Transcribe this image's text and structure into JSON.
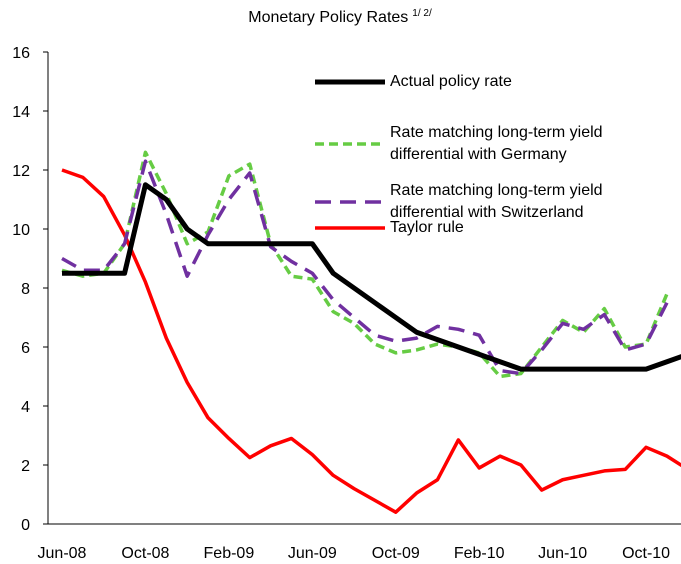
{
  "chart_data": {
    "type": "line",
    "title": "Monetary Policy Rates",
    "title_note": "1/ 2/",
    "categories": [
      "Jun-08",
      null,
      null,
      null,
      "Oct-08",
      null,
      null,
      null,
      "Feb-09",
      null,
      null,
      null,
      "Jun-09",
      null,
      null,
      null,
      "Oct-09",
      null,
      null,
      null,
      "Feb-10",
      null,
      null,
      null,
      "Jun-10",
      null,
      null,
      null,
      "Oct-10",
      null,
      null
    ],
    "series": [
      {
        "name": "Actual policy rate",
        "color": "#000000",
        "dash": "solid",
        "values": [
          8.5,
          8.5,
          8.5,
          8.5,
          11.5,
          11,
          10,
          9.5,
          9.5,
          9.5,
          9.5,
          9.5,
          9.5,
          8.5,
          8,
          7.5,
          7,
          6.5,
          6.25,
          6,
          5.75,
          5.5,
          5.25,
          5.25,
          5.25,
          5.25,
          5.25,
          5.25,
          5.25,
          5.5,
          5.75
        ]
      },
      {
        "name": "Rate matching long-term yield differential with Germany",
        "color": "#66cc44",
        "dash": "short",
        "values": [
          8.6,
          8.4,
          8.5,
          9.5,
          12.6,
          11.2,
          9.5,
          9.9,
          11.8,
          12.2,
          9.5,
          8.4,
          8.3,
          7.2,
          6.8,
          6.1,
          5.8,
          5.9,
          6.1,
          6.0,
          5.8,
          5.0,
          5.1,
          6.0,
          6.9,
          6.5,
          7.3,
          6.0,
          6.1,
          7.8,
          null
        ]
      },
      {
        "name": "Rate matching long-term yield differential with Switzerland",
        "color": "#7030a0",
        "dash": "long",
        "values": [
          9.0,
          8.6,
          8.6,
          9.5,
          12.3,
          10.5,
          8.4,
          9.8,
          11.0,
          11.9,
          9.4,
          8.9,
          8.5,
          7.6,
          7.0,
          6.4,
          6.2,
          6.3,
          6.7,
          6.6,
          6.4,
          5.2,
          5.1,
          5.9,
          6.8,
          6.6,
          7.1,
          5.9,
          6.1,
          7.5,
          null
        ]
      },
      {
        "name": "Taylor rule",
        "color": "#ff0000",
        "dash": "solid",
        "values": [
          12.0,
          11.75,
          11.1,
          9.8,
          8.2,
          6.3,
          4.8,
          3.6,
          2.9,
          2.25,
          2.65,
          2.9,
          2.35,
          1.65,
          1.2,
          0.8,
          0.4,
          1.05,
          1.5,
          2.85,
          1.9,
          2.3,
          2.0,
          1.15,
          1.5,
          1.65,
          1.8,
          1.85,
          2.6,
          2.3,
          1.85
        ]
      }
    ],
    "ylim": [
      0,
      16
    ],
    "yticks": [
      0,
      2,
      4,
      6,
      8,
      10,
      12,
      14,
      16
    ],
    "grid": false
  }
}
